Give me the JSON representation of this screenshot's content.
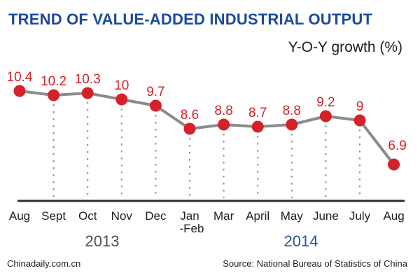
{
  "header": {
    "title": "TREND OF VALUE-ADDED INDUSTRIAL OUTPUT",
    "subtitle": "Y-O-Y growth (%)"
  },
  "chart_data": {
    "type": "line",
    "title": "TREND OF VALUE-ADDED INDUSTRIAL OUTPUT",
    "ylabel": "Y-O-Y growth (%)",
    "categories": [
      "Aug",
      "Sept",
      "Oct",
      "Nov",
      "Dec",
      "Jan\n-Feb",
      "Mar",
      "April",
      "May",
      "June",
      "July",
      "Aug"
    ],
    "values": [
      10.4,
      10.2,
      10.3,
      10,
      9.7,
      8.6,
      8.8,
      8.7,
      8.8,
      9.2,
      9,
      6.9
    ],
    "series": [
      {
        "name": "Y-O-Y growth (%)",
        "values": [
          10.4,
          10.2,
          10.3,
          10,
          9.7,
          8.6,
          8.8,
          8.7,
          8.8,
          9.2,
          9,
          6.9
        ]
      }
    ],
    "ylim": [
      6.5,
      10.8
    ],
    "grid": "vertical-dotted-droplines",
    "legend": "none",
    "year_groups": [
      {
        "label": "2013"
      },
      {
        "label": "2014"
      }
    ],
    "colors": {
      "point": "#d4212a",
      "value_label": "#d4212a",
      "line": "#8b8b8b",
      "dropline": "#8f8f8f",
      "axis": "#2e2e2e",
      "title": "#1b4b9b",
      "year_2013": "#4f4f4f",
      "year_2014": "#1d55a5",
      "tick_label": "#1f1f1f"
    }
  },
  "footer": {
    "brand": "Chinadaily.com.cn",
    "source": "Source: National Bureau of Statistics of China"
  }
}
